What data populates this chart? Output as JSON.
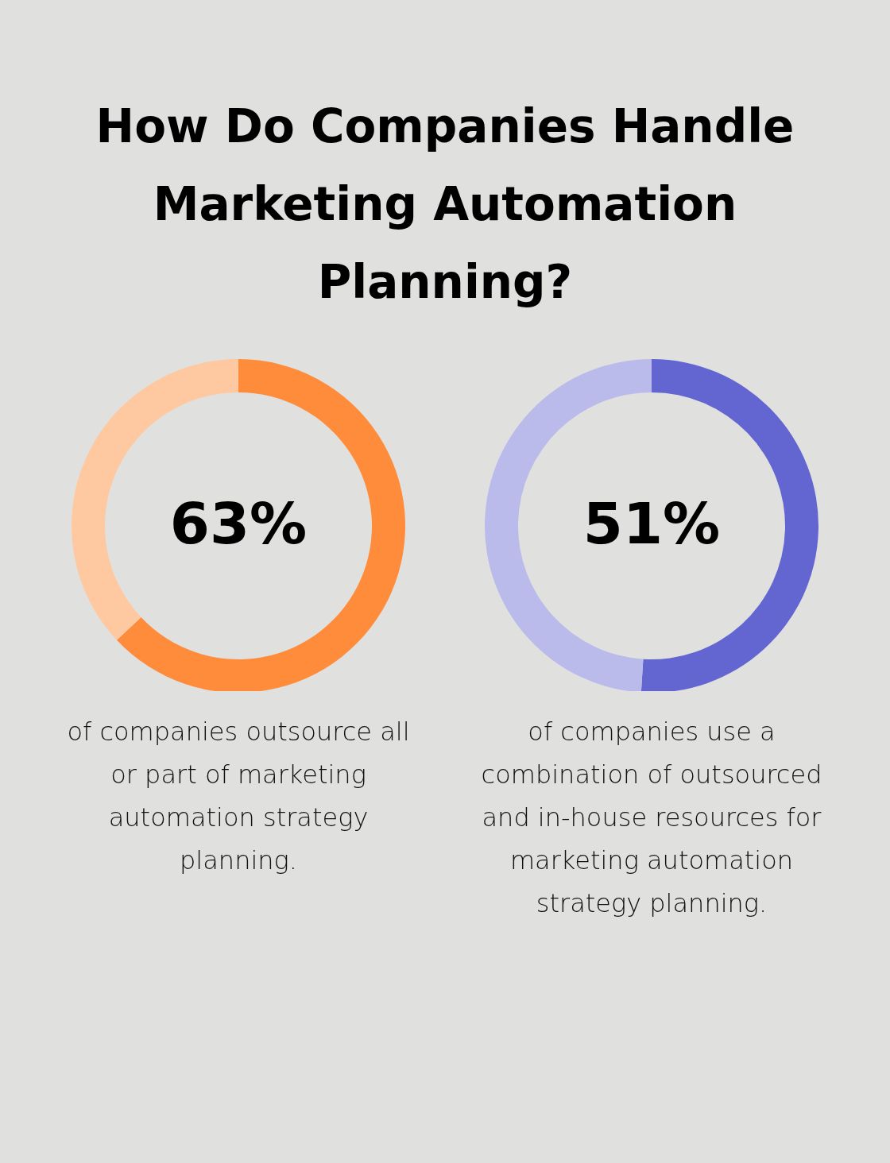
{
  "chart_data": [
    {
      "type": "donut",
      "title": "How Do Companies Handle Marketing Automation Planning?",
      "categories": [
        null,
        null
      ],
      "values": [
        63,
        37
      ],
      "colors": [
        "#fe8c3a",
        "#fec9a0"
      ],
      "annotations": [
        "63%",
        "of companies outsource all or part of marketing automation strategy planning."
      ]
    },
    {
      "type": "donut",
      "categories": [
        null,
        null
      ],
      "values": [
        51,
        49
      ],
      "colors": [
        "#6366d1",
        "#babbea"
      ],
      "annotations": [
        "51%",
        "of companies use a combination of outsourced and in-house resources for marketing automation strategy planning."
      ]
    }
  ]
}
